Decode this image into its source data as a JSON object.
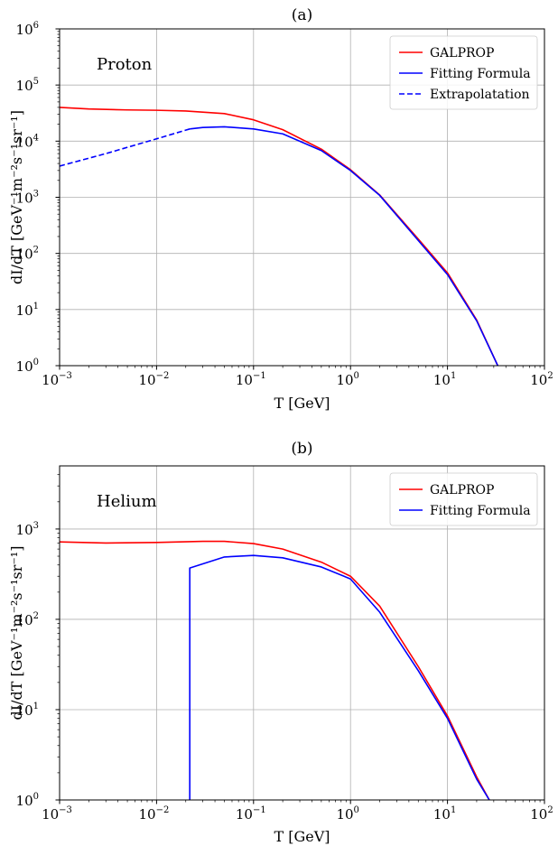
{
  "chart_data": [
    {
      "type": "line",
      "title": "(a)",
      "annotation": "Proton",
      "xlabel": "T [GeV]",
      "ylabel": "dI/dT [GeV⁻¹m⁻²s⁻¹sr⁻¹]",
      "xscale": "log",
      "yscale": "log",
      "xlim": [
        0.001,
        100
      ],
      "ylim": [
        1,
        1000000
      ],
      "xticks": [
        0.001,
        0.01,
        0.1,
        1,
        10,
        100
      ],
      "yticks": [
        1,
        10,
        100,
        1000,
        10000,
        100000,
        1000000
      ],
      "grid": true,
      "legend": "top-right",
      "series": [
        {
          "name": "GALPROP",
          "color": "#ff0000",
          "style": "solid",
          "points": [
            [
              0.001,
              40000
            ],
            [
              0.002,
              37500
            ],
            [
              0.005,
              36000
            ],
            [
              0.01,
              35500
            ],
            [
              0.02,
              34500
            ],
            [
              0.05,
              31000
            ],
            [
              0.1,
              24000
            ],
            [
              0.2,
              16000
            ],
            [
              0.5,
              7200
            ],
            [
              1,
              3100
            ],
            [
              2,
              1100
            ],
            [
              5,
              180
            ],
            [
              10,
              45
            ],
            [
              20,
              6.5
            ],
            [
              33,
              1
            ]
          ]
        },
        {
          "name": "Fitting Formula",
          "color": "#0000ff",
          "style": "solid",
          "points": [
            [
              0.022,
              16500
            ],
            [
              0.03,
              17500
            ],
            [
              0.05,
              18000
            ],
            [
              0.1,
              16500
            ],
            [
              0.2,
              13500
            ],
            [
              0.5,
              6800
            ],
            [
              1,
              3000
            ],
            [
              2,
              1080
            ],
            [
              5,
              170
            ],
            [
              10,
              42
            ],
            [
              20,
              6.3
            ],
            [
              33,
              1
            ]
          ]
        },
        {
          "name": "Extrapolatation",
          "color": "#0000ff",
          "style": "dashed",
          "points": [
            [
              0.001,
              3600
            ],
            [
              0.003,
              6000
            ],
            [
              0.01,
              11000
            ],
            [
              0.022,
              16500
            ]
          ]
        }
      ]
    },
    {
      "type": "line",
      "title": "(b)",
      "annotation": "Helium",
      "xlabel": "T [GeV]",
      "ylabel": "dI/dT [GeV⁻¹m⁻²s⁻¹sr⁻¹]",
      "xscale": "log",
      "yscale": "log",
      "xlim": [
        0.001,
        100
      ],
      "ylim": [
        1,
        5000
      ],
      "xticks": [
        0.001,
        0.01,
        0.1,
        1,
        10,
        100
      ],
      "yticks": [
        1,
        10,
        100,
        1000
      ],
      "grid": true,
      "legend": "top-right",
      "series": [
        {
          "name": "GALPROP",
          "color": "#ff0000",
          "style": "solid",
          "points": [
            [
              0.001,
              720
            ],
            [
              0.003,
              700
            ],
            [
              0.01,
              710
            ],
            [
              0.03,
              730
            ],
            [
              0.05,
              730
            ],
            [
              0.1,
              690
            ],
            [
              0.2,
              600
            ],
            [
              0.5,
              430
            ],
            [
              1,
              300
            ],
            [
              2,
              140
            ],
            [
              5,
              30
            ],
            [
              10,
              8.5
            ],
            [
              20,
              1.8
            ],
            [
              27,
              1
            ]
          ]
        },
        {
          "name": "Fitting Formula",
          "color": "#0000ff",
          "style": "solid",
          "points": [
            [
              0.022,
              1
            ],
            [
              0.022,
              370
            ],
            [
              0.05,
              490
            ],
            [
              0.1,
              510
            ],
            [
              0.2,
              480
            ],
            [
              0.5,
              380
            ],
            [
              1,
              280
            ],
            [
              2,
              120
            ],
            [
              5,
              27
            ],
            [
              10,
              8
            ],
            [
              20,
              1.7
            ],
            [
              27,
              1
            ]
          ]
        }
      ]
    }
  ]
}
